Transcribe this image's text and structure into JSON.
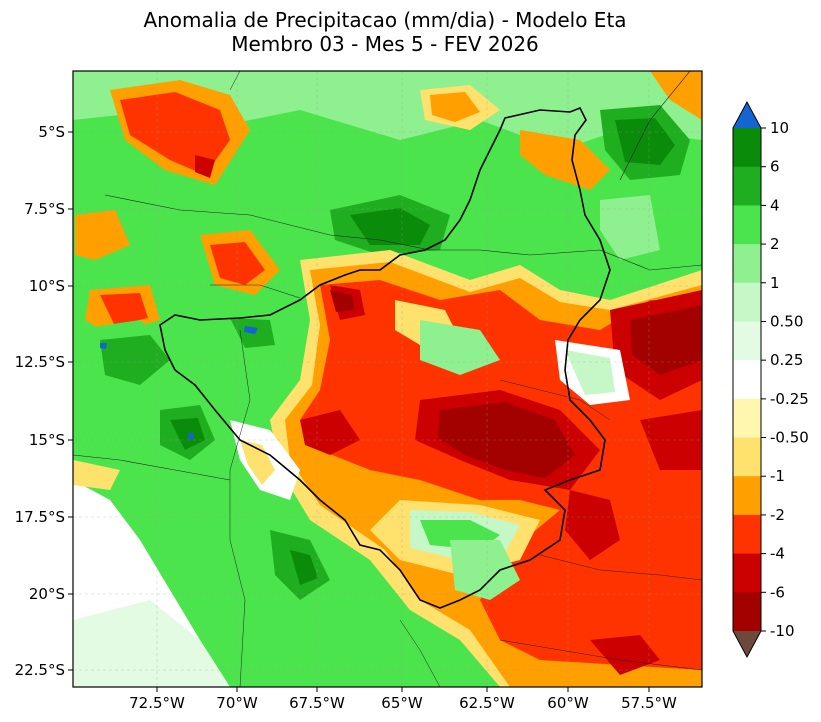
{
  "title_line1": "Anomalia de Precipitacao (mm/dia) - Modelo Eta",
  "title_line2": "Membro 03 - Mes 5 - FEV 2026",
  "axes": {
    "lon_ticks": [
      "72.5°W",
      "70°W",
      "67.5°W",
      "65°W",
      "62.5°W",
      "60°W",
      "57.5°W"
    ],
    "lat_ticks": [
      "5°S",
      "7.5°S",
      "10°S",
      "12.5°S",
      "15°S",
      "17.5°S",
      "20°S",
      "22.5°S"
    ]
  },
  "colorbar": {
    "labels": [
      "10",
      "6",
      "4",
      "2",
      "1",
      "0.50",
      "0.25",
      "-0.25",
      "-0.50",
      "-1",
      "-2",
      "-4",
      "-6",
      "-10"
    ],
    "colors": [
      "#0a8c0a",
      "#1fae1f",
      "#4ce44c",
      "#8ef08e",
      "#c6f7c6",
      "#e3fae3",
      "#ffffff",
      "#fff7b0",
      "#ffe16e",
      "#ff9f00",
      "#ff3300",
      "#cc0000",
      "#a30000"
    ],
    "over_color": "#1464d2",
    "under_color": "#6b4a3c"
  }
}
